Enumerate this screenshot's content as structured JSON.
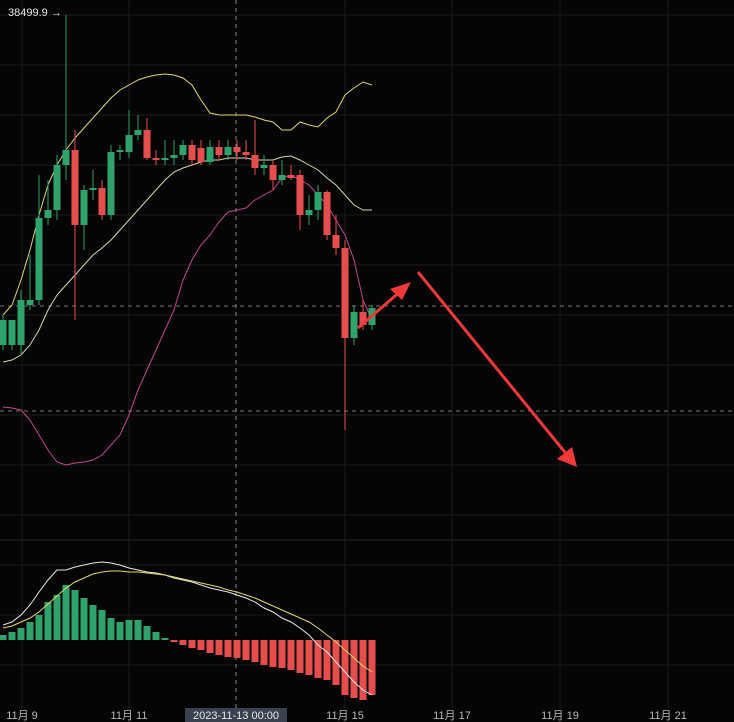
{
  "chart_data": [
    {
      "type": "candlestick",
      "price_label": "38499.9 →",
      "crosshair_label": "2023-11-13 00:00",
      "x_labels": [
        "11月 9",
        "11月 11",
        "11月 15",
        "11月 17",
        "11月 19",
        "11月 21"
      ],
      "up_color": "#2ea36b",
      "down_color": "#e64e4e",
      "ylim": [
        35875,
        38575
      ],
      "open": [
        36850,
        36850,
        36850,
        37050,
        37075,
        37485,
        37525,
        37750,
        37825,
        37450,
        37625,
        37635,
        37500,
        37815,
        37815,
        37900,
        37925,
        37785,
        37775,
        37785,
        37800,
        37850,
        37835,
        37765,
        37840,
        37800,
        37840,
        37815,
        37800,
        37735,
        37750,
        37675,
        37700,
        37700,
        37500,
        37525,
        37615,
        37400,
        37335,
        36885,
        37015,
        36950
      ],
      "high": [
        37000,
        36975,
        37125,
        37300,
        37700,
        37675,
        37800,
        38499.9,
        37925,
        37650,
        37725,
        37675,
        37850,
        37850,
        38025,
        38000,
        37985,
        37825,
        37875,
        37875,
        37875,
        37875,
        37875,
        37875,
        37875,
        37875,
        37875,
        37875,
        37975,
        37800,
        37775,
        37775,
        37750,
        37725,
        37600,
        37650,
        37625,
        37500,
        37375,
        37050,
        37075,
        37050
      ],
      "low": [
        36825,
        36825,
        36800,
        37025,
        37050,
        37450,
        37475,
        37675,
        36975,
        37325,
        37575,
        37475,
        37475,
        37775,
        37785,
        37875,
        37775,
        37750,
        37750,
        37750,
        37775,
        37750,
        37750,
        37750,
        37775,
        37775,
        37775,
        37775,
        37700,
        37700,
        37625,
        37650,
        37675,
        37425,
        37450,
        37475,
        37375,
        37300,
        36425,
        36850,
        36925,
        36925
      ],
      "close": [
        36975,
        36975,
        37075,
        37075,
        37485,
        37525,
        37750,
        37825,
        37450,
        37625,
        37635,
        37500,
        37815,
        37825,
        37900,
        37925,
        37785,
        37775,
        37785,
        37800,
        37850,
        37775,
        37765,
        37840,
        37800,
        37840,
        37815,
        37800,
        37735,
        37750,
        37675,
        37700,
        37685,
        37500,
        37525,
        37615,
        37400,
        37335,
        36885,
        37015,
        36950,
        37035
      ],
      "series": [
        {
          "color": "#e0d86a",
          "values": [
            37000,
            37050,
            37175,
            37325,
            37500,
            37650,
            37750,
            37825,
            37885,
            37935,
            37985,
            38035,
            38085,
            38125,
            38150,
            38175,
            38190,
            38200,
            38205,
            38200,
            38185,
            38150,
            38075,
            38010,
            38000,
            38000,
            38000,
            38000,
            37990,
            37975,
            37965,
            37925,
            37925,
            37965,
            37950,
            37940,
            37985,
            38015,
            38100,
            38135,
            38165,
            38150
          ]
        },
        {
          "color": "#d9d6a8",
          "values": [
            36765,
            36775,
            36800,
            36850,
            36925,
            37025,
            37100,
            37150,
            37200,
            37250,
            37300,
            37335,
            37375,
            37425,
            37475,
            37525,
            37575,
            37625,
            37675,
            37715,
            37735,
            37750,
            37765,
            37775,
            37775,
            37785,
            37785,
            37785,
            37775,
            37775,
            37775,
            37790,
            37795,
            37775,
            37750,
            37725,
            37685,
            37650,
            37600,
            37550,
            37525,
            37525
          ]
        },
        {
          "color": "#c2488f",
          "values": [
            36540,
            36535,
            36525,
            36475,
            36400,
            36325,
            36265,
            36250,
            36260,
            36265,
            36275,
            36300,
            36350,
            36400,
            36500,
            36625,
            36725,
            36825,
            36925,
            37025,
            37175,
            37275,
            37350,
            37400,
            37465,
            37515,
            37525,
            37535,
            37575,
            37600,
            37625,
            37685,
            37700,
            37675,
            37650,
            37600,
            37550,
            37475,
            37400,
            37275,
            37075,
            36975
          ]
        }
      ]
    },
    {
      "type": "bar",
      "ylim": [
        -80,
        100
      ],
      "values": [
        5,
        8,
        12,
        18,
        25,
        38,
        45,
        55,
        50,
        42,
        35,
        30,
        22,
        18,
        20,
        20,
        14,
        8,
        2,
        -2,
        -5,
        -8,
        -10,
        -13,
        -15,
        -17,
        -18,
        -20,
        -22,
        -25,
        -27,
        -28,
        -30,
        -33,
        -35,
        -38,
        -40,
        -45,
        -55,
        -58,
        -60,
        -55
      ],
      "series": [
        {
          "color": "#e8e8e8",
          "values": [
            15,
            18,
            25,
            35,
            48,
            60,
            70,
            70,
            73,
            75,
            77,
            78,
            77,
            75,
            72,
            70,
            68,
            67,
            65,
            62,
            60,
            58,
            55,
            52,
            50,
            48,
            45,
            42,
            38,
            32,
            28,
            22,
            18,
            12,
            5,
            -5,
            -12,
            -22,
            -32,
            -42,
            -50,
            -55
          ]
        },
        {
          "color": "#e0d86a",
          "values": [
            12,
            14,
            18,
            22,
            28,
            36,
            44,
            52,
            58,
            62,
            66,
            68,
            69,
            69,
            68,
            68,
            67,
            66,
            65,
            63,
            61,
            59,
            57,
            55,
            53,
            50,
            48,
            45,
            42,
            38,
            34,
            30,
            26,
            22,
            18,
            12,
            5,
            -2,
            -10,
            -18,
            -26,
            -32
          ]
        }
      ]
    }
  ]
}
